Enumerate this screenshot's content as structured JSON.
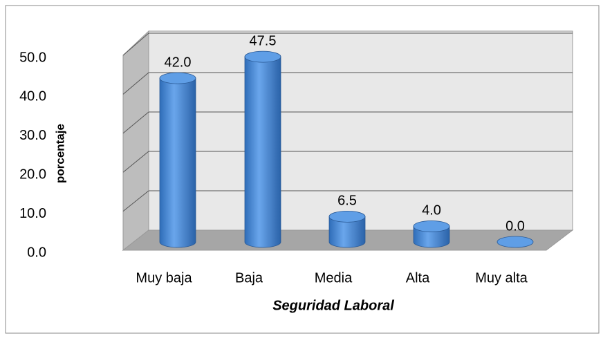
{
  "chart_data": {
    "type": "bar3d",
    "x_label": "Seguridad Laboral",
    "y_label": "porcentaje",
    "categories": [
      "Muy baja",
      "Baja",
      "Media",
      "Alta",
      "Muy alta"
    ],
    "values": [
      42.0,
      47.5,
      6.5,
      4.0,
      0.0
    ],
    "value_labels": [
      "42.0",
      "47.5",
      "6.5",
      "4.0",
      "0.0"
    ],
    "color": "#4a8ad6",
    "ylim": [
      0,
      50
    ],
    "yticks": [
      {
        "value": 0,
        "label": "0.0"
      },
      {
        "value": 10,
        "label": "10.0"
      },
      {
        "value": 20,
        "label": "20.0"
      },
      {
        "value": 30,
        "label": "30.0"
      },
      {
        "value": 40,
        "label": "40.0"
      },
      {
        "value": 50,
        "label": "50.0"
      }
    ],
    "grid": true
  }
}
